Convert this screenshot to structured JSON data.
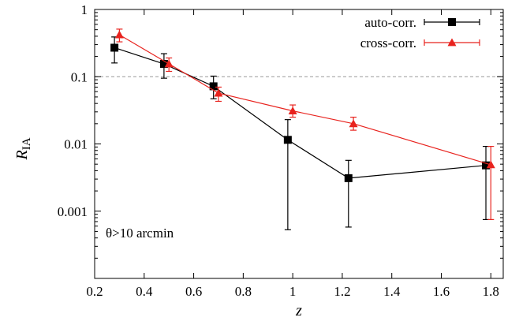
{
  "chart_data": {
    "type": "line",
    "title": "",
    "xlabel": "z",
    "ylabel": "R",
    "ylabel_sub": "IA",
    "xlim": [
      0.2,
      1.85
    ],
    "ylim": [
      0.0001,
      1
    ],
    "yscale": "log",
    "xticks": [
      0.2,
      0.4,
      0.6,
      0.8,
      1.0,
      1.2,
      1.4,
      1.6,
      1.8
    ],
    "xtick_labels": [
      "0.2",
      "0.4",
      "0.6",
      "0.8",
      "1",
      "1.2",
      "1.4",
      "1.6",
      "1.8"
    ],
    "yticks": [
      0.001,
      0.01,
      0.1,
      1
    ],
    "ytick_labels": [
      "0.001",
      "0.01",
      "0.1",
      "1"
    ],
    "grid": false,
    "reference_line": {
      "y": 0.1,
      "style": "dashed",
      "color": "#999999"
    },
    "legend_position": "top-right",
    "annotation": "θ>10 arcmin",
    "series": [
      {
        "name": "auto-corr.",
        "color": "#000000",
        "marker": "square",
        "x": [
          0.28,
          0.48,
          0.68,
          0.98,
          1.225,
          1.78
        ],
        "y": [
          0.27,
          0.155,
          0.072,
          0.0115,
          0.0031,
          0.0048
        ],
        "y_err_low": [
          0.16,
          0.095,
          0.047,
          0.00053,
          0.00058,
          0.00075
        ],
        "y_err_high": [
          0.39,
          0.22,
          0.102,
          0.023,
          0.0057,
          0.0092
        ]
      },
      {
        "name": "cross-corr.",
        "color": "#e8231e",
        "marker": "triangle",
        "x": [
          0.3,
          0.5,
          0.7,
          1.0,
          1.245,
          1.8
        ],
        "y": [
          0.42,
          0.155,
          0.057,
          0.031,
          0.02,
          0.0049
        ],
        "y_err_low": [
          0.33,
          0.12,
          0.043,
          0.025,
          0.016,
          0.00075
        ],
        "y_err_high": [
          0.51,
          0.19,
          0.07,
          0.038,
          0.025,
          0.0092
        ]
      }
    ]
  }
}
